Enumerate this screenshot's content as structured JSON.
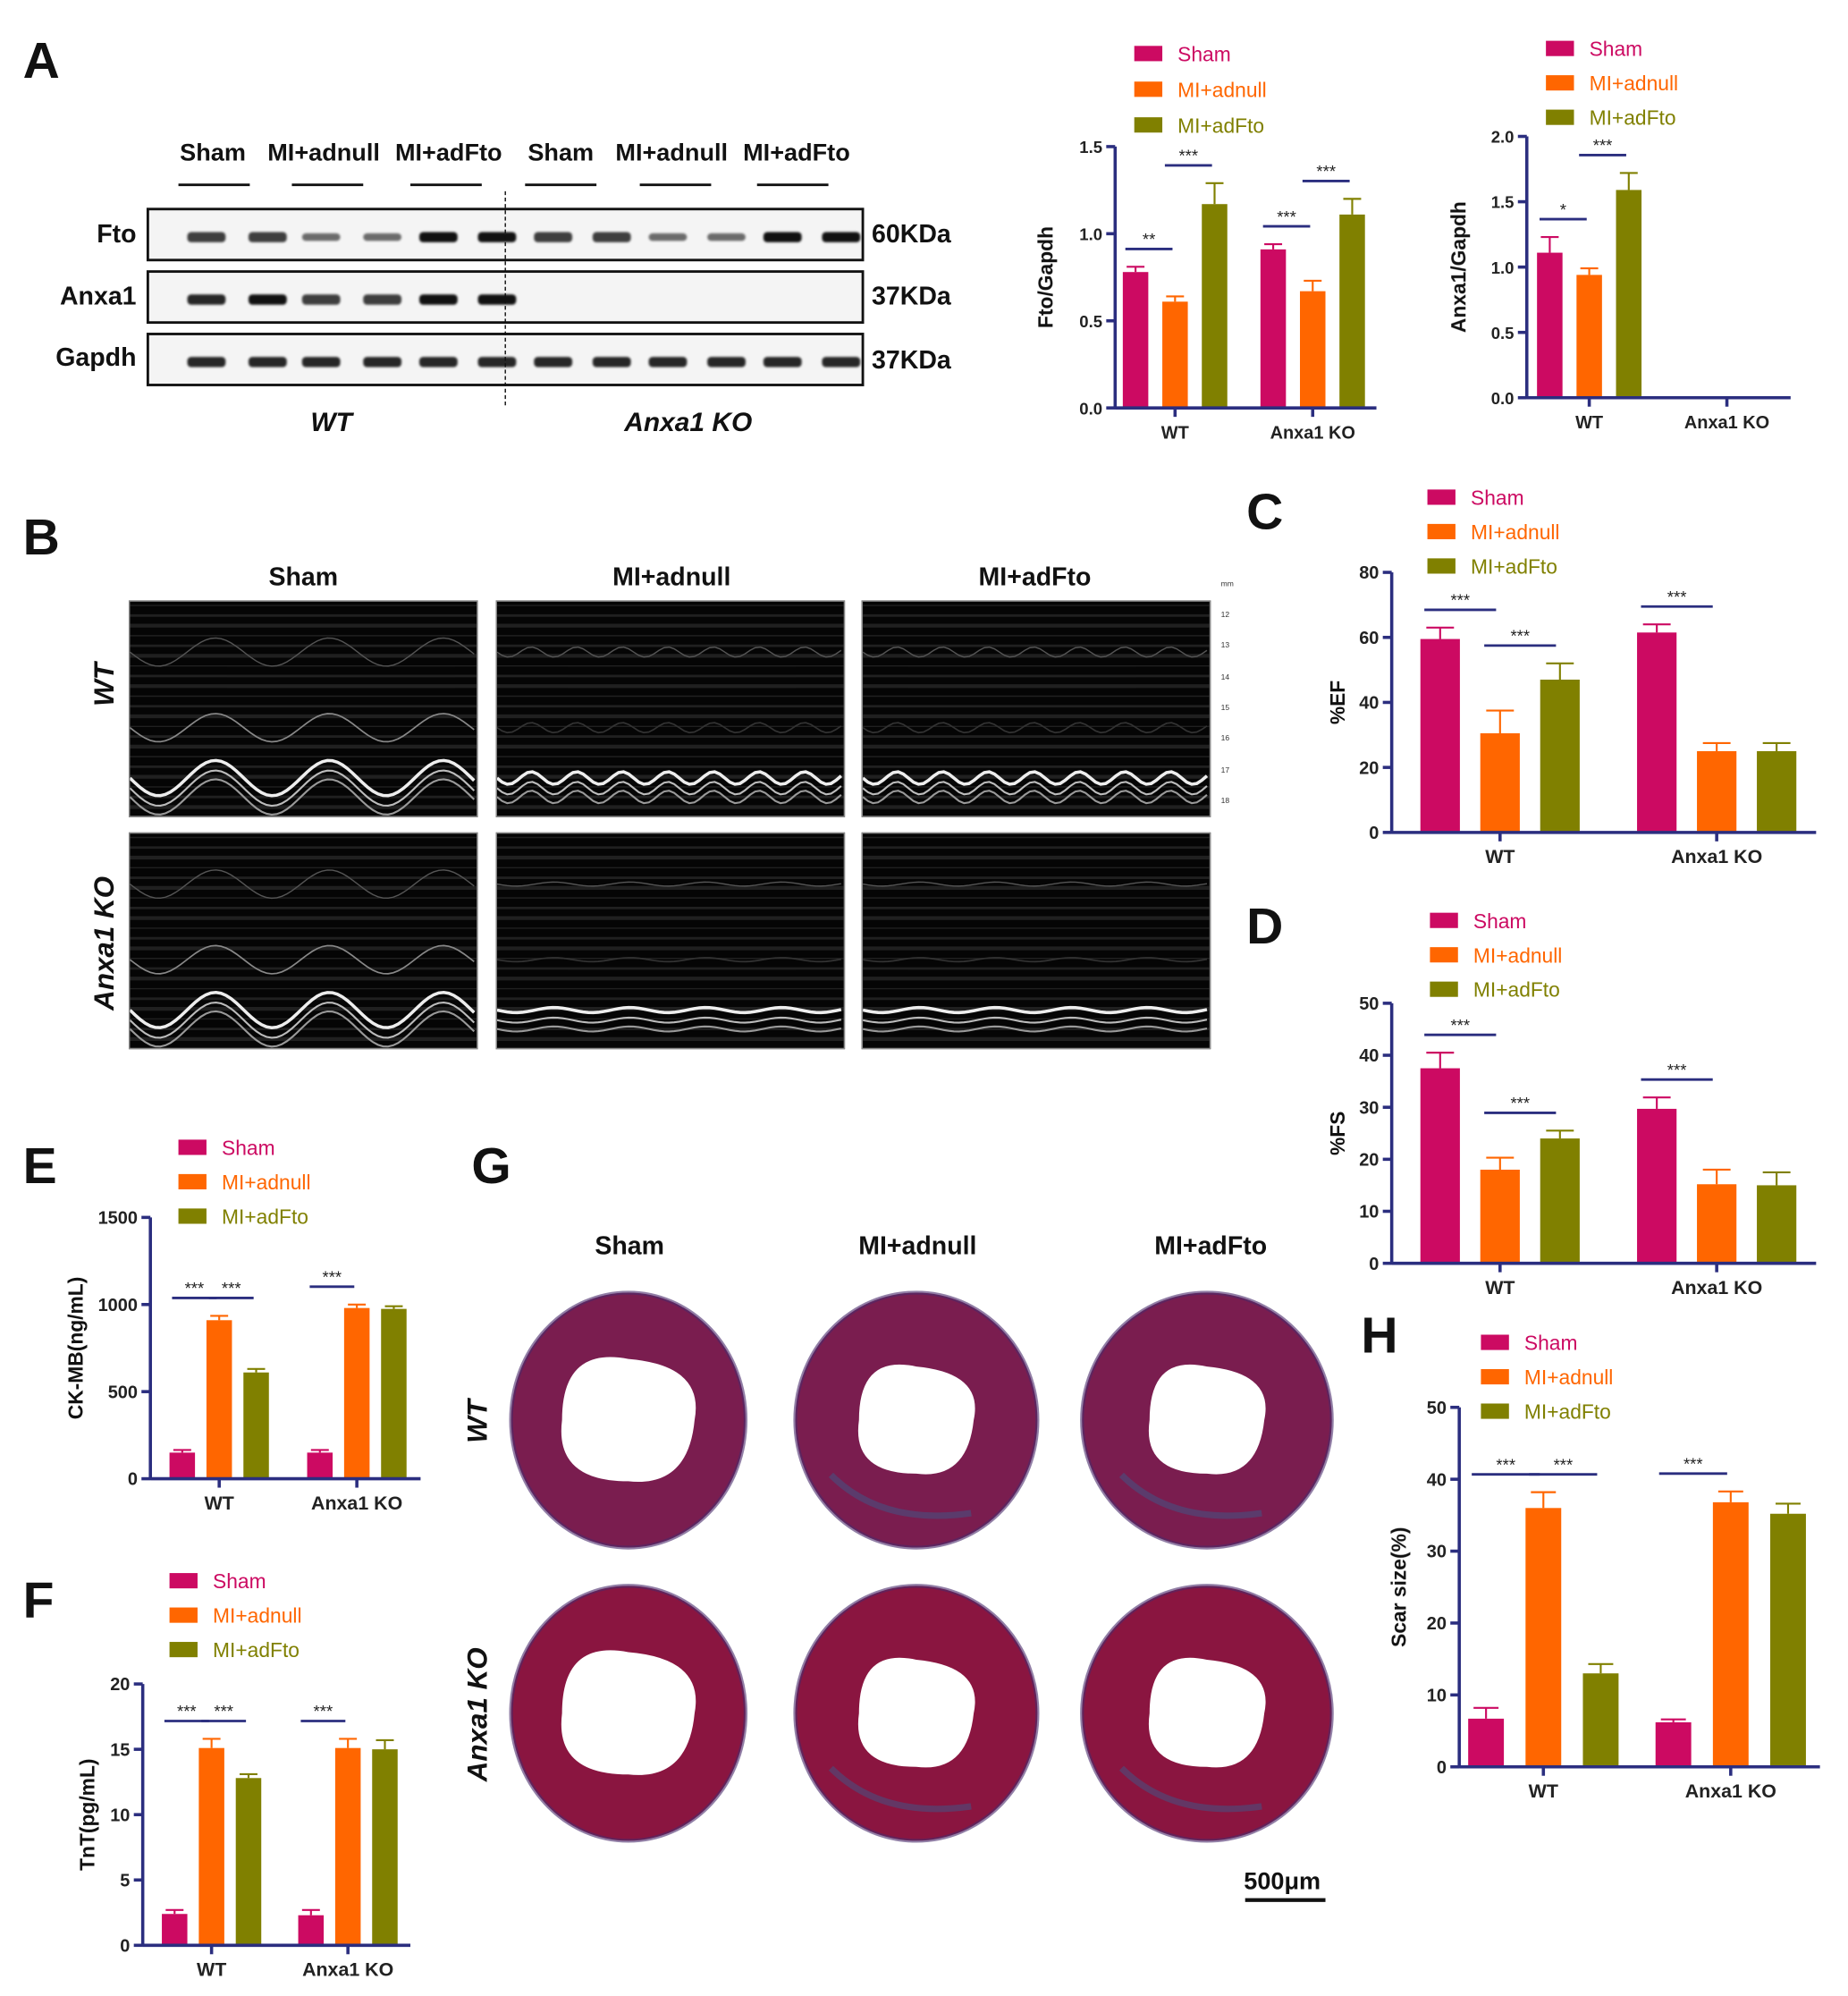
{
  "panel_labels": [
    "A",
    "B",
    "C",
    "D",
    "E",
    "F",
    "G",
    "H"
  ],
  "colors": {
    "sham": "#cc0a62",
    "mi_adnull": "#ff6600",
    "mi_adfto": "#808000",
    "axis": "#2b2e7f"
  },
  "blot": {
    "lanes": [
      "Sham",
      "MI+adnull",
      "MI+adFto",
      "Sham",
      "MI+adnull",
      "MI+adFto"
    ],
    "proteins": [
      {
        "name": "Fto",
        "kda": "60KDa"
      },
      {
        "name": "Anxa1",
        "kda": "37KDa"
      },
      {
        "name": "Gapdh",
        "kda": "37KDa"
      }
    ],
    "genotypes": [
      "WT",
      "Anxa1 KO"
    ]
  },
  "echo": {
    "columns": [
      "Sham",
      "MI+adnull",
      "MI+adFto"
    ],
    "rows": [
      "WT",
      "Anxa1 KO"
    ],
    "scale_unit": "mm",
    "scale_ticks": [
      "12",
      "13",
      "14",
      "15",
      "16",
      "17",
      "18"
    ]
  },
  "histology": {
    "columns": [
      "Sham",
      "MI+adnull",
      "MI+adFto"
    ],
    "rows": [
      "WT",
      "Anxa1 KO"
    ],
    "scale_bar": "500μm"
  },
  "chart_data": [
    {
      "id": "fto",
      "type": "bar",
      "ylabel": "Fto/Gapdh",
      "ylim": [
        0,
        1.5
      ],
      "yticks": [
        "0.0",
        "0.5",
        "1.0",
        "1.5"
      ],
      "categories": [
        "WT",
        "Anxa1 KO"
      ],
      "series": [
        {
          "name": "Sham",
          "values": [
            0.78,
            0.91
          ],
          "errors": [
            0.03,
            0.03
          ]
        },
        {
          "name": "MI+adnull",
          "values": [
            0.61,
            0.67
          ],
          "errors": [
            0.03,
            0.06
          ]
        },
        {
          "name": "MI+adFto",
          "values": [
            1.17,
            1.11
          ],
          "errors": [
            0.12,
            0.09
          ]
        }
      ],
      "significance": [
        {
          "group": 0,
          "from": 0,
          "to": 1,
          "label": "**"
        },
        {
          "group": 0,
          "from": 1,
          "to": 2,
          "label": "***"
        },
        {
          "group": 1,
          "from": 0,
          "to": 1,
          "label": "***"
        },
        {
          "group": 1,
          "from": 1,
          "to": 2,
          "label": "***"
        }
      ]
    },
    {
      "id": "anxa1",
      "type": "bar",
      "ylabel": "Anxa1/Gapdh",
      "ylim": [
        0,
        2.0
      ],
      "yticks": [
        "0.0",
        "0.5",
        "1.0",
        "1.5",
        "2.0"
      ],
      "categories": [
        "WT",
        "Anxa1 KO"
      ],
      "series": [
        {
          "name": "Sham",
          "values": [
            1.11,
            0
          ],
          "errors": [
            0.12,
            0
          ]
        },
        {
          "name": "MI+adnull",
          "values": [
            0.94,
            0
          ],
          "errors": [
            0.05,
            0
          ]
        },
        {
          "name": "MI+adFto",
          "values": [
            1.59,
            0
          ],
          "errors": [
            0.13,
            0
          ]
        }
      ],
      "significance": [
        {
          "group": 0,
          "from": 0,
          "to": 1,
          "label": "*"
        },
        {
          "group": 0,
          "from": 1,
          "to": 2,
          "label": "***"
        }
      ]
    },
    {
      "id": "ef",
      "type": "bar",
      "ylabel": "%EF",
      "ylim": [
        0,
        80
      ],
      "yticks": [
        "0",
        "20",
        "40",
        "60",
        "80"
      ],
      "categories": [
        "WT",
        "Anxa1 KO"
      ],
      "series": [
        {
          "name": "Sham",
          "values": [
            59.5,
            61.5
          ],
          "errors": [
            3.5,
            2.5
          ]
        },
        {
          "name": "MI+adnull",
          "values": [
            30.5,
            25
          ],
          "errors": [
            7,
            2.5
          ]
        },
        {
          "name": "MI+adFto",
          "values": [
            47,
            25
          ],
          "errors": [
            5,
            2.5
          ]
        }
      ],
      "significance": [
        {
          "group": 0,
          "from": 0,
          "to": 1,
          "label": "***"
        },
        {
          "group": 0,
          "from": 1,
          "to": 2,
          "label": "***"
        },
        {
          "group": 1,
          "from": 0,
          "to": 1,
          "label": "***"
        }
      ]
    },
    {
      "id": "fs",
      "type": "bar",
      "ylabel": "%FS",
      "ylim": [
        0,
        50
      ],
      "yticks": [
        "0",
        "10",
        "20",
        "30",
        "40",
        "50"
      ],
      "categories": [
        "WT",
        "Anxa1 KO"
      ],
      "series": [
        {
          "name": "Sham",
          "values": [
            37.5,
            29.7
          ],
          "errors": [
            3,
            2.2
          ]
        },
        {
          "name": "MI+adnull",
          "values": [
            18,
            15.2
          ],
          "errors": [
            2.3,
            2.8
          ]
        },
        {
          "name": "MI+adFto",
          "values": [
            24,
            15
          ],
          "errors": [
            1.5,
            2.5
          ]
        }
      ],
      "significance": [
        {
          "group": 0,
          "from": 0,
          "to": 1,
          "label": "***"
        },
        {
          "group": 0,
          "from": 1,
          "to": 2,
          "label": "***"
        },
        {
          "group": 1,
          "from": 0,
          "to": 1,
          "label": "***"
        }
      ]
    },
    {
      "id": "ckmb",
      "type": "bar",
      "ylabel": "CK-MB(ng/mL)",
      "ylim": [
        0,
        1500
      ],
      "yticks": [
        "0",
        "500",
        "1000",
        "1500"
      ],
      "categories": [
        "WT",
        "Anxa1 KO"
      ],
      "series": [
        {
          "name": "Sham",
          "values": [
            150,
            150
          ],
          "errors": [
            15,
            15
          ]
        },
        {
          "name": "MI+adnull",
          "values": [
            910,
            980
          ],
          "errors": [
            25,
            20
          ]
        },
        {
          "name": "MI+adFto",
          "values": [
            610,
            975
          ],
          "errors": [
            20,
            15
          ]
        }
      ],
      "significance": [
        {
          "group": 0,
          "from": 0,
          "to": 1,
          "label": "***"
        },
        {
          "group": 0,
          "from": 1,
          "to": 2,
          "label": "***"
        },
        {
          "group": 1,
          "from": 0,
          "to": 1,
          "label": "***"
        }
      ]
    },
    {
      "id": "tnt",
      "type": "bar",
      "ylabel": "TnT(pg/mL)",
      "ylim": [
        0,
        20
      ],
      "yticks": [
        "0",
        "5",
        "10",
        "15",
        "20"
      ],
      "categories": [
        "WT",
        "Anxa1 KO"
      ],
      "series": [
        {
          "name": "Sham",
          "values": [
            2.4,
            2.3
          ],
          "errors": [
            0.3,
            0.4
          ]
        },
        {
          "name": "MI+adnull",
          "values": [
            15.1,
            15.1
          ],
          "errors": [
            0.7,
            0.7
          ]
        },
        {
          "name": "MI+adFto",
          "values": [
            12.8,
            15
          ],
          "errors": [
            0.3,
            0.7
          ]
        }
      ],
      "significance": [
        {
          "group": 0,
          "from": 0,
          "to": 1,
          "label": "***"
        },
        {
          "group": 0,
          "from": 1,
          "to": 2,
          "label": "***"
        },
        {
          "group": 1,
          "from": 0,
          "to": 1,
          "label": "***"
        }
      ]
    },
    {
      "id": "scar",
      "type": "bar",
      "ylabel": "Scar size(%)",
      "ylim": [
        0,
        50
      ],
      "yticks": [
        "0",
        "10",
        "20",
        "30",
        "40",
        "50"
      ],
      "categories": [
        "WT",
        "Anxa1 KO"
      ],
      "series": [
        {
          "name": "Sham",
          "values": [
            6.7,
            6.2
          ],
          "errors": [
            1.5,
            0.4
          ]
        },
        {
          "name": "MI+adnull",
          "values": [
            36,
            36.8
          ],
          "errors": [
            2.2,
            1.5
          ]
        },
        {
          "name": "MI+adFto",
          "values": [
            13,
            35.2
          ],
          "errors": [
            1.3,
            1.4
          ]
        }
      ],
      "significance": [
        {
          "group": 0,
          "from": 0,
          "to": 1,
          "label": "***"
        },
        {
          "group": 0,
          "from": 1,
          "to": 2,
          "label": "***"
        },
        {
          "group": 1,
          "from": 0,
          "to": 1,
          "label": "***"
        }
      ]
    }
  ]
}
